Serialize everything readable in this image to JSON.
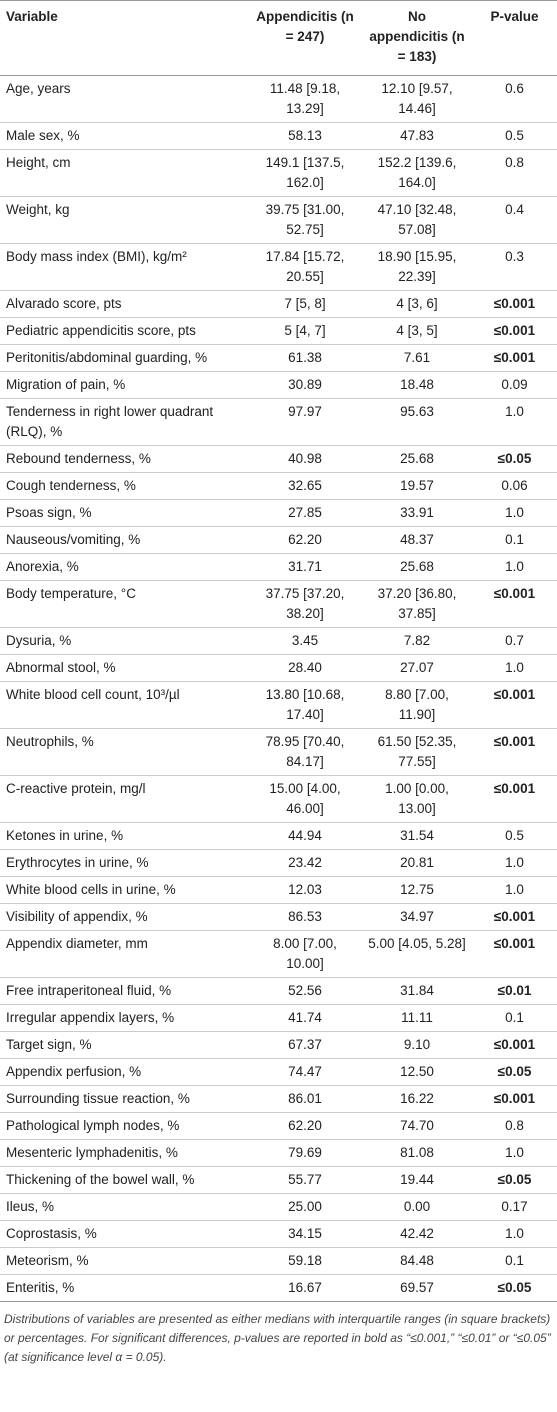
{
  "table": {
    "header": [
      "Variable",
      "Appendicitis (n = 247)",
      "No appendicitis (n = 183)",
      "P-value"
    ],
    "rows": [
      [
        "Age, years",
        "11.48 [9.18, 13.29]",
        "12.10 [9.57, 14.46]",
        "0.6"
      ],
      [
        "Male sex, %",
        "58.13",
        "47.83",
        "0.5"
      ],
      [
        "Height, cm",
        "149.1 [137.5, 162.0]",
        "152.2 [139.6, 164.0]",
        "0.8"
      ],
      [
        "Weight, kg",
        "39.75 [31.00, 52.75]",
        "47.10 [32.48, 57.08]",
        "0.4"
      ],
      [
        "Body mass index (BMI), kg/m²",
        "17.84 [15.72, 20.55]",
        "18.90 [15.95, 22.39]",
        "0.3"
      ],
      [
        "Alvarado score, pts",
        "7 [5, 8]",
        "4 [3, 6]",
        "≤0.001"
      ],
      [
        "Pediatric appendicitis score, pts",
        "5 [4, 7]",
        "4 [3, 5]",
        "≤0.001"
      ],
      [
        "Peritonitis/abdominal guarding, %",
        "61.38",
        "7.61",
        "≤0.001"
      ],
      [
        "Migration of pain, %",
        "30.89",
        "18.48",
        "0.09"
      ],
      [
        "Tenderness in right lower quadrant (RLQ), %",
        "97.97",
        "95.63",
        "1.0"
      ],
      [
        "Rebound tenderness, %",
        "40.98",
        "25.68",
        "≤0.05"
      ],
      [
        "Cough tenderness, %",
        "32.65",
        "19.57",
        "0.06"
      ],
      [
        "Psoas sign, %",
        "27.85",
        "33.91",
        "1.0"
      ],
      [
        "Nauseous/vomiting, %",
        "62.20",
        "48.37",
        "0.1"
      ],
      [
        "Anorexia, %",
        "31.71",
        "25.68",
        "1.0"
      ],
      [
        "Body temperature, °C",
        "37.75 [37.20, 38.20]",
        "37.20 [36.80, 37.85]",
        "≤0.001"
      ],
      [
        "Dysuria, %",
        "3.45",
        "7.82",
        "0.7"
      ],
      [
        "Abnormal stool, %",
        "28.40",
        "27.07",
        "1.0"
      ],
      [
        "White blood cell count, 10³/µl",
        "13.80 [10.68, 17.40]",
        "8.80 [7.00, 11.90]",
        "≤0.001"
      ],
      [
        "Neutrophils, %",
        "78.95 [70.40, 84.17]",
        "61.50 [52.35, 77.55]",
        "≤0.001"
      ],
      [
        "C-reactive protein, mg/l",
        "15.00 [4.00, 46.00]",
        "1.00 [0.00, 13.00]",
        "≤0.001"
      ],
      [
        "Ketones in urine, %",
        "44.94",
        "31.54",
        "0.5"
      ],
      [
        "Erythrocytes in urine, %",
        "23.42",
        "20.81",
        "1.0"
      ],
      [
        "White blood cells in urine, %",
        "12.03",
        "12.75",
        "1.0"
      ],
      [
        "Visibility of appendix, %",
        "86.53",
        "34.97",
        "≤0.001"
      ],
      [
        "Appendix diameter, mm",
        "8.00 [7.00, 10.00]",
        "5.00 [4.05, 5.28]",
        "≤0.001"
      ],
      [
        "Free intraperitoneal fluid, %",
        "52.56",
        "31.84",
        "≤0.01"
      ],
      [
        "Irregular appendix layers, %",
        "41.74",
        "11.11",
        "0.1"
      ],
      [
        "Target sign, %",
        "67.37",
        "9.10",
        "≤0.001"
      ],
      [
        "Appendix perfusion, %",
        "74.47",
        "12.50",
        "≤0.05"
      ],
      [
        "Surrounding tissue reaction, %",
        "86.01",
        "16.22",
        "≤0.001"
      ],
      [
        "Pathological lymph nodes, %",
        "62.20",
        "74.70",
        "0.8"
      ],
      [
        "Mesenteric lymphadenitis, %",
        "79.69",
        "81.08",
        "1.0"
      ],
      [
        "Thickening of the bowel wall, %",
        "55.77",
        "19.44",
        "≤0.05"
      ],
      [
        "Ileus, %",
        "25.00",
        "0.00",
        "0.17"
      ],
      [
        "Coprostasis, %",
        "34.15",
        "42.42",
        "1.0"
      ],
      [
        "Meteorism, %",
        "59.18",
        "84.48",
        "0.1"
      ],
      [
        "Enteritis, %",
        "16.67",
        "69.57",
        "≤0.05"
      ]
    ]
  },
  "footnote": "Distributions of variables are presented as either medians with interquartile ranges (in square brackets) or percentages. For significant differences, p-values are reported in bold as “≤0.001,” “≤0.01” or “≤0.05” (at significance level α = 0.05)."
}
